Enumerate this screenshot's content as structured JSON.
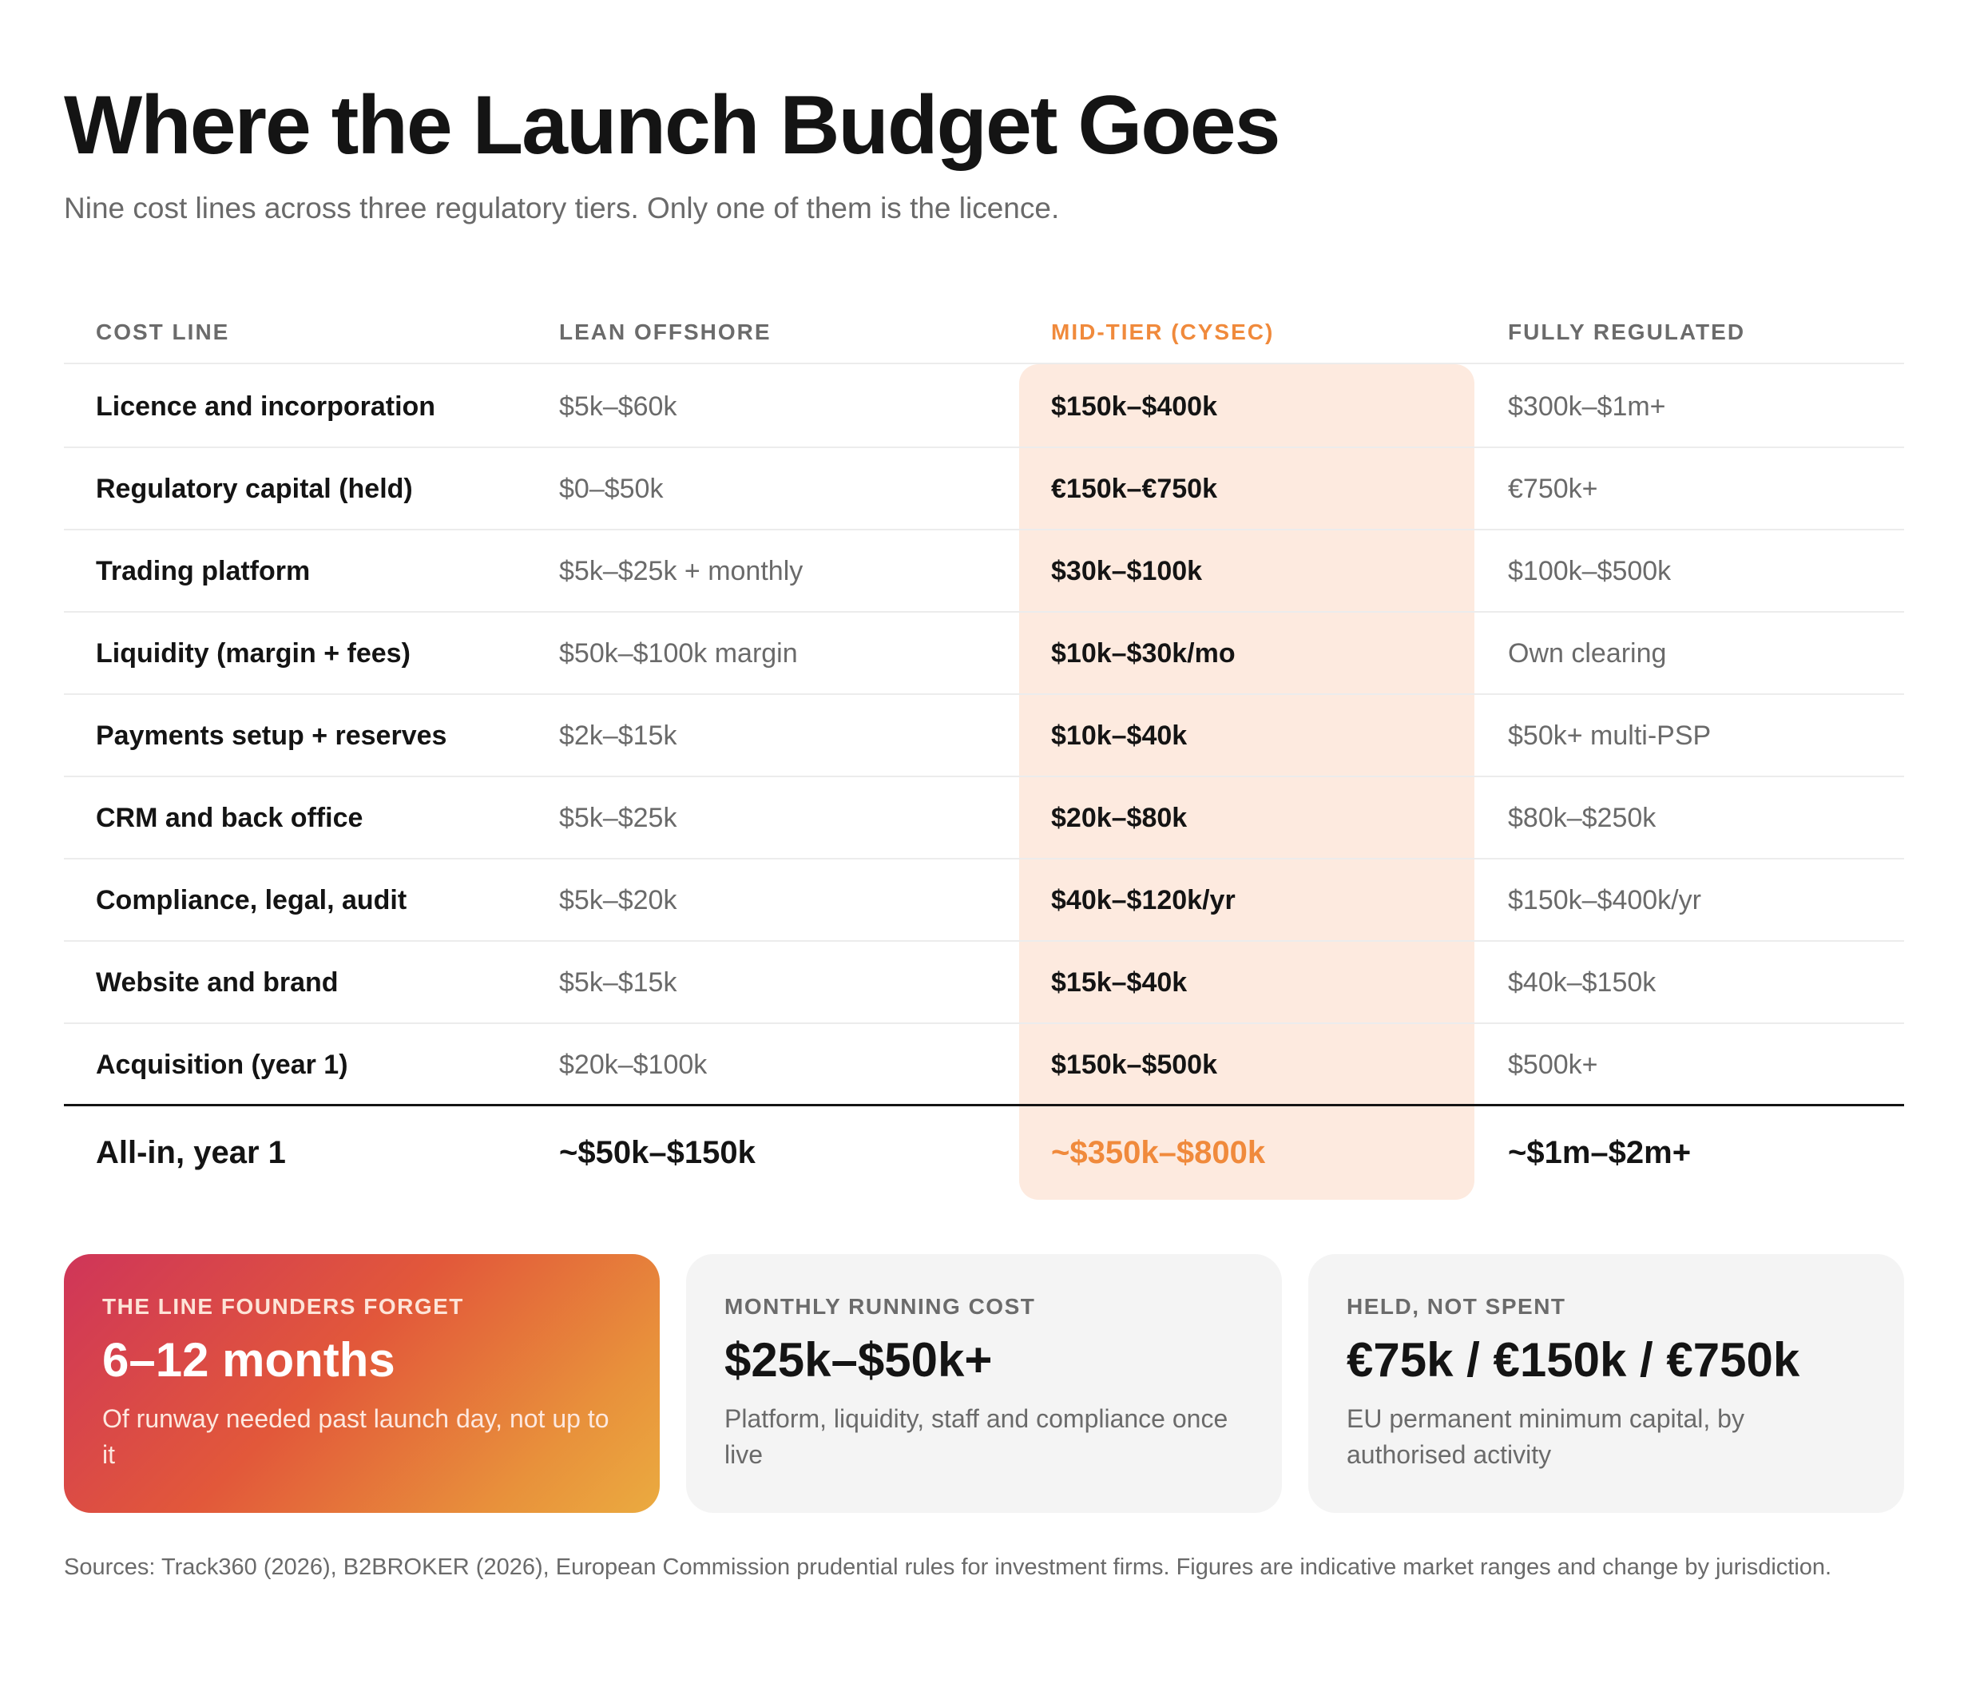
{
  "title": "Where the Launch Budget Goes",
  "subtitle": "Nine cost lines across three regulatory tiers. Only one of them is the licence.",
  "table": {
    "headers": [
      "COST LINE",
      "LEAN OFFSHORE",
      "MID-TIER (CYSEC)",
      "FULLY REGULATED"
    ],
    "rows": [
      [
        "Licence and incorporation",
        "$5k–$60k",
        "$150k–$400k",
        "$300k–$1m+"
      ],
      [
        "Regulatory capital (held)",
        "$0–$50k",
        "€150k–€750k",
        "€750k+"
      ],
      [
        "Trading platform",
        "$5k–$25k + monthly",
        "$30k–$100k",
        "$100k–$500k"
      ],
      [
        "Liquidity (margin + fees)",
        "$50k–$100k margin",
        "$10k–$30k/mo",
        "Own clearing"
      ],
      [
        "Payments setup + reserves",
        "$2k–$15k",
        "$10k–$40k",
        "$50k+ multi-PSP"
      ],
      [
        "CRM and back office",
        "$5k–$25k",
        "$20k–$80k",
        "$80k–$250k"
      ],
      [
        "Compliance, legal, audit",
        "$5k–$20k",
        "$40k–$120k/yr",
        "$150k–$400k/yr"
      ],
      [
        "Website and brand",
        "$5k–$15k",
        "$15k–$40k",
        "$40k–$150k"
      ],
      [
        "Acquisition (year 1)",
        "$20k–$100k",
        "$150k–$500k",
        "$500k+"
      ]
    ],
    "total": [
      "All-in, year 1",
      "~$50k–$150k",
      "~$350k–$800k",
      "~$1m–$2m+"
    ]
  },
  "cards": [
    {
      "kicker": "THE LINE FOUNDERS FORGET",
      "value": "6–12 months",
      "desc": "Of runway needed past launch day, not up to it"
    },
    {
      "kicker": "MONTHLY RUNNING COST",
      "value": "$25k–$50k+",
      "desc": "Platform, liquidity, staff and compliance once live"
    },
    {
      "kicker": "HELD, NOT SPENT",
      "value": "€75k / €150k / €750k",
      "desc": "EU permanent minimum capital, by authorised activity"
    }
  ],
  "sources": "Sources: Track360 (2026), B2BROKER (2026), European Commission prudential rules for investment firms. Figures are indicative market ranges and change by jurisdiction.",
  "colors": {
    "accent": "#f08a3c",
    "highlight": "#fdeadf",
    "text": "#141414",
    "muted": "#6a6a6a"
  }
}
